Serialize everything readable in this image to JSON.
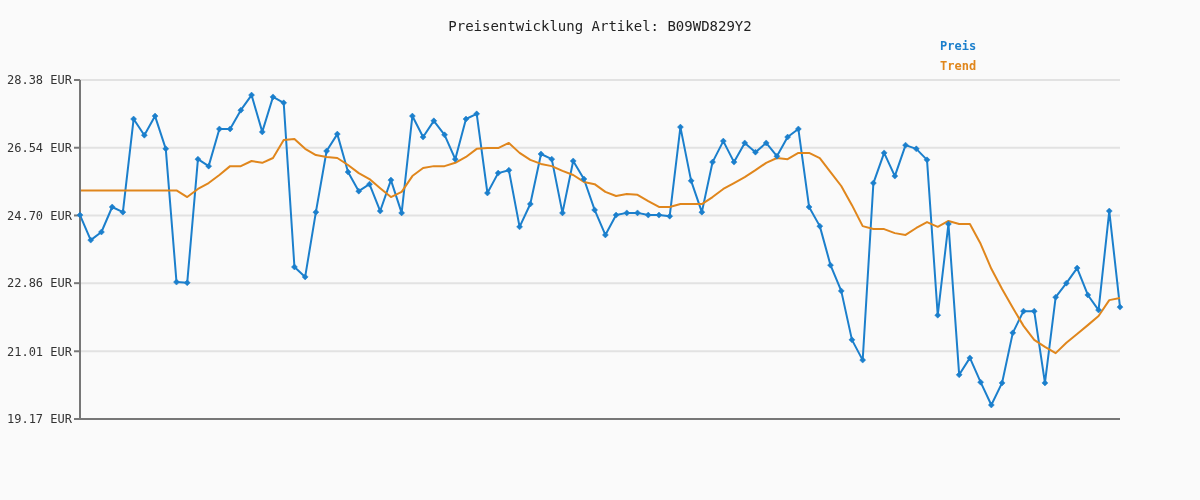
{
  "chart_data": {
    "type": "line",
    "title": "Preisentwicklung Artikel: B09WD829Y2",
    "categories": [
      null,
      null,
      null,
      null,
      null,
      null,
      null,
      null,
      null,
      null,
      null,
      null,
      null,
      null,
      null,
      null,
      null,
      null,
      null,
      null,
      null,
      null,
      null,
      null,
      null,
      null,
      null,
      null,
      null,
      null,
      null,
      null,
      null,
      null,
      null,
      null,
      null,
      null,
      null,
      null,
      null,
      null,
      null,
      null,
      null,
      null,
      null,
      null,
      null,
      null,
      null,
      null,
      null,
      null,
      null,
      null,
      null,
      null,
      null,
      null,
      null,
      null,
      null,
      null,
      null,
      null,
      null,
      null,
      null,
      null,
      null,
      null,
      null,
      null,
      null,
      null,
      null,
      null,
      null,
      null,
      null,
      null,
      null,
      null,
      null,
      null,
      null,
      null,
      null,
      null,
      null,
      null,
      null,
      null,
      null,
      null,
      null,
      null
    ],
    "series": [
      {
        "name": "Preis",
        "color": "#1b7fcc",
        "marker": "diamond",
        "values": [
          24.71,
          24.03,
          24.25,
          24.93,
          24.79,
          27.32,
          26.88,
          27.4,
          26.51,
          22.89,
          22.87,
          26.23,
          26.04,
          27.05,
          27.05,
          27.56,
          27.97,
          26.97,
          27.92,
          27.76,
          23.3,
          23.03,
          24.79,
          26.45,
          26.91,
          25.88,
          25.36,
          25.55,
          24.82,
          25.66,
          24.77,
          27.4,
          26.83,
          27.27,
          26.89,
          26.23,
          27.32,
          27.46,
          25.31,
          25.85,
          25.93,
          24.39,
          25.01,
          26.37,
          26.23,
          24.77,
          26.18,
          25.69,
          24.85,
          24.17,
          24.71,
          24.77,
          24.77,
          24.71,
          24.71,
          24.68,
          27.1,
          25.64,
          24.79,
          26.15,
          26.72,
          26.15,
          26.67,
          26.42,
          26.67,
          26.31,
          26.83,
          27.05,
          24.93,
          24.41,
          23.35,
          22.65,
          21.32,
          20.77,
          25.58,
          26.4,
          25.77,
          26.61,
          26.51,
          26.21,
          21.99,
          24.47,
          20.37,
          20.83,
          20.17,
          19.55,
          20.15,
          21.51,
          22.1,
          22.1,
          20.15,
          22.48,
          22.86,
          23.27,
          22.54,
          22.13,
          24.82,
          22.21
        ]
      },
      {
        "name": "Trend",
        "color": "#e0861c",
        "marker": "none",
        "values": [
          25.38,
          25.38,
          25.38,
          25.38,
          25.38,
          25.38,
          25.38,
          25.38,
          25.38,
          25.38,
          25.2,
          25.42,
          25.58,
          25.8,
          26.04,
          26.04,
          26.18,
          26.13,
          26.26,
          26.75,
          26.78,
          26.51,
          26.34,
          26.29,
          26.26,
          26.07,
          25.85,
          25.69,
          25.44,
          25.2,
          25.34,
          25.77,
          25.99,
          26.04,
          26.04,
          26.13,
          26.29,
          26.51,
          26.53,
          26.53,
          26.67,
          26.4,
          26.21,
          26.1,
          26.04,
          25.91,
          25.8,
          25.61,
          25.55,
          25.34,
          25.23,
          25.28,
          25.26,
          25.09,
          24.93,
          24.93,
          25.01,
          25.01,
          25.01,
          25.2,
          25.42,
          25.58,
          25.74,
          25.93,
          26.13,
          26.26,
          26.23,
          26.4,
          26.4,
          26.26,
          25.88,
          25.5,
          24.98,
          24.41,
          24.33,
          24.33,
          24.22,
          24.17,
          24.36,
          24.52,
          24.39,
          24.55,
          24.47,
          24.47,
          23.93,
          23.25,
          22.7,
          22.19,
          21.7,
          21.32,
          21.13,
          20.96,
          21.24,
          21.48,
          21.72,
          21.97,
          22.4,
          22.46
        ]
      }
    ],
    "ylim": [
      19.17,
      28.38
    ],
    "yticks": [
      {
        "value": 19.17,
        "label": "19.17 EUR"
      },
      {
        "value": 21.01,
        "label": "21.01 EUR"
      },
      {
        "value": 22.86,
        "label": "22.86 EUR"
      },
      {
        "value": 24.7,
        "label": "24.70 EUR"
      },
      {
        "value": 26.54,
        "label": "26.54 EUR"
      },
      {
        "value": 28.38,
        "label": "28.38 EUR"
      }
    ],
    "grid": "y",
    "legend": "top right",
    "line_style": "solid"
  }
}
